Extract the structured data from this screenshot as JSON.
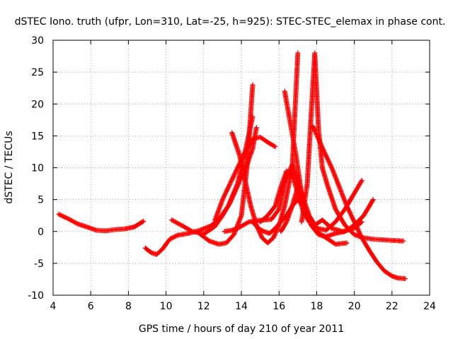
{
  "chart_data": {
    "type": "scatter",
    "title": "dSTEC Iono. truth (ufpr, Lon=310, Lat=-25, h=925): STEC-STEC_elemax in phase cont.",
    "xlabel": "GPS time / hours of day 210 of year 2011",
    "ylabel": "dSTEC  / TECUs",
    "xlim": [
      4,
      24
    ],
    "ylim": [
      -10,
      30
    ],
    "xticks": [
      "4",
      "6",
      "8",
      "10",
      "12",
      "14",
      "16",
      "18",
      "20",
      "22",
      "24"
    ],
    "yticks": [
      "-10",
      "-5",
      "0",
      "5",
      "10",
      "15",
      "20",
      "25",
      "30"
    ],
    "grid": true,
    "marker": "plus",
    "color": "#ff0000",
    "series": [
      {
        "x": [
          4.3,
          4.8,
          5.3,
          5.8,
          6.3,
          6.8,
          7.3,
          7.8,
          8.3,
          8.8
        ],
        "y": [
          2.7,
          2.0,
          1.2,
          0.7,
          0.2,
          0.1,
          0.3,
          0.4,
          0.7,
          1.6
        ]
      },
      {
        "x": [
          8.9,
          9.2,
          9.5,
          9.8,
          10.2,
          10.6,
          11.2,
          11.8,
          12.4,
          12.9,
          13.3,
          13.8,
          14.2,
          14.6
        ],
        "y": [
          -2.6,
          -3.3,
          -3.6,
          -2.8,
          -1.2,
          -0.6,
          -0.3,
          0.2,
          0.9,
          2.3,
          4.0,
          7.5,
          12.5,
          18.0
        ]
      },
      {
        "x": [
          10.3,
          10.8,
          11.4,
          12.0,
          12.6,
          13.0,
          13.4,
          13.7,
          14.0,
          14.3,
          14.6,
          14.8
        ],
        "y": [
          1.8,
          1.0,
          0.0,
          -0.4,
          0.8,
          2.5,
          4.5,
          6.5,
          8.5,
          10.5,
          13.0,
          16.3
        ]
      },
      {
        "x": [
          11.8,
          12.3,
          12.8,
          13.2,
          13.6,
          14.0,
          14.3,
          14.6
        ],
        "y": [
          -0.4,
          -1.5,
          -2.0,
          -1.8,
          -0.5,
          2.5,
          10.0,
          23.0
        ]
      },
      {
        "x": [
          12.6,
          13.0,
          13.4,
          13.8,
          14.2,
          14.6,
          15.0,
          15.4,
          15.8
        ],
        "y": [
          1.8,
          5.0,
          7.5,
          10.0,
          12.5,
          14.5,
          14.8,
          14.0,
          13.3
        ]
      },
      {
        "x": [
          13.1,
          13.5,
          13.8,
          14.1,
          14.4,
          14.8,
          15.2,
          15.6,
          16.0,
          16.3,
          16.7,
          17.0,
          17.4,
          17.8
        ],
        "y": [
          0.0,
          0.2,
          0.5,
          1.0,
          1.5,
          1.7,
          1.8,
          1.9,
          3.5,
          7.5,
          10.5,
          8.0,
          3.5,
          1.5
        ]
      },
      {
        "x": [
          13.5,
          13.9,
          14.2,
          14.5,
          14.8,
          15.1,
          15.4,
          15.7,
          16.0,
          16.3,
          16.7,
          17.0
        ],
        "y": [
          15.5,
          12.0,
          8.0,
          4.0,
          1.0,
          -1.0,
          -1.8,
          -1.0,
          1.0,
          4.0,
          10.0,
          28.0
        ]
      },
      {
        "x": [
          14.6,
          14.9,
          15.2,
          15.5,
          15.8,
          16.1,
          16.4,
          16.7,
          17.0,
          17.3,
          17.6,
          18.0,
          18.5,
          19.0,
          19.6
        ],
        "y": [
          1.5,
          0.5,
          0.0,
          -0.3,
          0.5,
          1.5,
          2.5,
          4.0,
          5.0,
          4.0,
          2.0,
          0.0,
          -1.0,
          -2.0,
          -1.8
        ]
      },
      {
        "x": [
          15.0,
          15.4,
          15.8,
          16.1,
          16.4,
          16.7,
          17.0,
          17.3,
          17.6,
          17.9,
          18.3,
          18.8,
          19.4,
          20.0,
          20.4
        ],
        "y": [
          1.5,
          2.5,
          4.0,
          7.0,
          9.5,
          9.0,
          6.0,
          3.0,
          1.5,
          1.0,
          1.8,
          0.5,
          0.0,
          0.5,
          1.5
        ]
      },
      {
        "x": [
          16.1,
          16.4,
          16.7,
          17.0,
          17.3,
          17.7,
          18.1,
          18.5,
          19.0,
          19.5,
          20.0,
          20.5,
          21.0
        ],
        "y": [
          0.0,
          1.5,
          4.0,
          7.0,
          4.0,
          1.0,
          -0.5,
          -0.8,
          -0.3,
          0.0,
          1.0,
          2.5,
          5.0
        ]
      },
      {
        "x": [
          16.3,
          16.6,
          16.9,
          17.2,
          17.6,
          18.0,
          18.5,
          19.0,
          19.5,
          20.0,
          20.4
        ],
        "y": [
          22.0,
          17.0,
          12.0,
          6.0,
          2.5,
          0.5,
          0.2,
          1.5,
          3.5,
          6.0,
          8.0
        ]
      },
      {
        "x": [
          17.2,
          17.5,
          17.7,
          17.9,
          18.1,
          18.3,
          18.6,
          19.0,
          19.5,
          20.0,
          20.5,
          21.0,
          21.5,
          22.0,
          22.6
        ],
        "y": [
          1.5,
          7.5,
          18.0,
          28.0,
          16.0,
          10.0,
          7.0,
          3.5,
          1.0,
          -0.5,
          -1.0,
          -1.2,
          -1.3,
          -1.4,
          -1.5
        ]
      },
      {
        "x": [
          17.8,
          18.1,
          18.4,
          18.8,
          19.2,
          19.6,
          20.0,
          20.4,
          20.8,
          21.2,
          21.6,
          22.0,
          22.3,
          22.7
        ],
        "y": [
          16.5,
          14.5,
          12.5,
          10.0,
          7.0,
          4.0,
          1.5,
          -1.0,
          -3.0,
          -4.8,
          -6.2,
          -7.0,
          -7.3,
          -7.4
        ]
      }
    ]
  }
}
